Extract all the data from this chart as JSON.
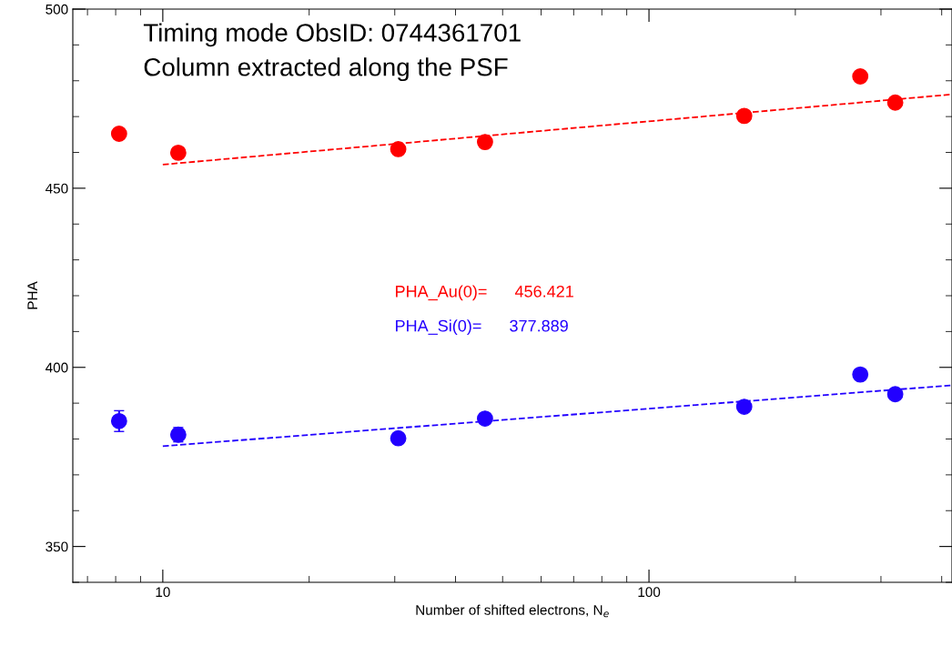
{
  "chart_data": {
    "type": "scatter",
    "xlabel": "Number of shifted electrons, N$_{e}$",
    "ylabel": "PHA",
    "log": "x",
    "xlim": [
      6.53,
      420
    ],
    "xticks": [
      10,
      100
    ],
    "ylim": [
      340,
      500
    ],
    "yticks": [
      350,
      400,
      450,
      500
    ],
    "grid": false,
    "series": [
      {
        "marker": "circle",
        "color": "#ff0000",
        "x": [
          8.13,
          10.76,
          30.5,
          46.0,
          157,
          272,
          321
        ],
        "values": [
          465.2,
          459.9,
          460.9,
          462.9,
          470.2,
          481.2,
          473.9
        ]
      },
      {
        "marker": "circle",
        "color": "#2200ff",
        "x": [
          8.13,
          10.76,
          30.5,
          46.0,
          157,
          272,
          321
        ],
        "values": [
          385.0,
          381.2,
          380.2,
          385.7,
          389.0,
          398.0,
          392.5
        ],
        "errors": [
          2.9,
          2.0,
          null,
          null,
          null,
          null,
          null
        ]
      },
      {
        "type": "line",
        "line_style": "dashed",
        "color": "#ff0000",
        "x": [
          10,
          420
        ],
        "values": [
          456.6,
          476.2
        ]
      },
      {
        "type": "line",
        "line_style": "dashed",
        "color": "#2200ff",
        "x": [
          10,
          420
        ],
        "values": [
          378.0,
          395.0
        ]
      }
    ],
    "annotations": [
      "Timing mode ObsID: 0744361701",
      "Column extracted along the PSF",
      "PHA_Au(0)=      456.421",
      "PHA_Si(0)=      377.889"
    ]
  }
}
